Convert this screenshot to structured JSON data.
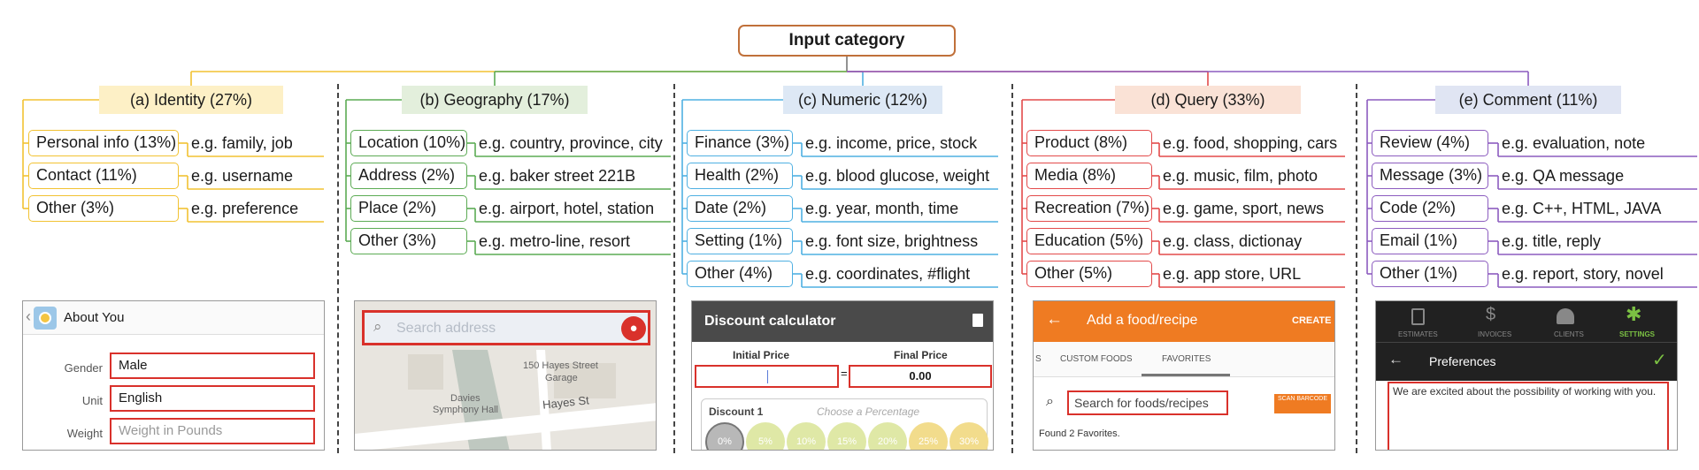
{
  "title": "Input category",
  "colors": {
    "identity": "#f2c232",
    "geography": "#5cab54",
    "numeric": "#4fb0e2",
    "query": "#e34a4a",
    "comment": "#8c5cbf",
    "identity_bg": "#fdf0c6",
    "geography_bg": "#e3efdc",
    "numeric_bg": "#dde8f5",
    "query_bg": "#fae2d6",
    "comment_bg": "#e0e5f3",
    "root_border": "#c0703a",
    "highlight_red": "#d9312b"
  },
  "categories": [
    {
      "label": "(a) Identity (27%)",
      "items": [
        {
          "name": "Personal info (13%)",
          "example": "e.g. family, job"
        },
        {
          "name": "Contact (11%)",
          "example": "e.g. username"
        },
        {
          "name": "Other (3%)",
          "example": "e.g. preference"
        }
      ]
    },
    {
      "label": "(b) Geography (17%)",
      "items": [
        {
          "name": "Location (10%)",
          "example": "e.g. country, province, city"
        },
        {
          "name": "Address (2%)",
          "example": "e.g. baker street 221B"
        },
        {
          "name": "Place (2%)",
          "example": "e.g. airport, hotel, station"
        },
        {
          "name": "Other (3%)",
          "example": "e.g. metro-line, resort"
        }
      ]
    },
    {
      "label": "(c) Numeric (12%)",
      "items": [
        {
          "name": "Finance (3%)",
          "example": "e.g. income, price, stock"
        },
        {
          "name": "Health (2%)",
          "example": "e.g. blood glucose, weight"
        },
        {
          "name": "Date (2%)",
          "example": "e.g. year, month, time"
        },
        {
          "name": "Setting (1%)",
          "example": "e.g. font size, brightness"
        },
        {
          "name": "Other (4%)",
          "example": "e.g. coordinates, #flight"
        }
      ]
    },
    {
      "label": "(d) Query (33%)",
      "items": [
        {
          "name": "Product (8%)",
          "example": "e.g. food, shopping, cars"
        },
        {
          "name": "Media (8%)",
          "example": "e.g. music, film, photo"
        },
        {
          "name": "Recreation (7%)",
          "example": "e.g. game, sport, news"
        },
        {
          "name": "Education (5%)",
          "example": "e.g. class, dictionay"
        },
        {
          "name": "Other (5%)",
          "example": "e.g. app store, URL"
        }
      ]
    },
    {
      "label": "(e) Comment (11%)",
      "items": [
        {
          "name": "Review (4%)",
          "example": "e.g. evaluation, note"
        },
        {
          "name": "Message (3%)",
          "example": "e.g. QA message"
        },
        {
          "name": "Code (2%)",
          "example": "e.g. C++, HTML, JAVA"
        },
        {
          "name": "Email (1%)",
          "example": "e.g. title, reply"
        },
        {
          "name": "Other (1%)",
          "example": "e.g. report, story, novel"
        }
      ]
    }
  ],
  "screens": {
    "identity": {
      "title": "About You",
      "icon": "avatar-icon",
      "fields": [
        {
          "label": "Gender",
          "value": "Male",
          "is_placeholder": false
        },
        {
          "label": "Unit",
          "value": "English",
          "is_placeholder": false
        },
        {
          "label": "Weight",
          "value": "Weight in Pounds",
          "is_placeholder": true
        }
      ]
    },
    "geography": {
      "placeholder": "Search address",
      "map_labels": [
        "150 Hayes Street",
        "Garage",
        "Davies",
        "Symphony Hall",
        "Hayes St"
      ],
      "icons": [
        "search-icon",
        "mic-icon"
      ]
    },
    "numeric": {
      "title": "Discount calculator",
      "initial_label": "Initial Price",
      "final_label": "Final Price",
      "equals": "=",
      "final_value": "0.00",
      "discount_label": "Discount 1",
      "discount_hint": "Choose a Percentage",
      "chips": [
        "0%",
        "5%",
        "10%",
        "15%",
        "20%",
        "25%",
        "30%"
      ],
      "icons": [
        "trash-icon"
      ]
    },
    "query": {
      "title": "Add a food/recipe",
      "action": "CREATE",
      "tab_partial": "S",
      "tabs": [
        "CUSTOM FOODS",
        "FAVORITES"
      ],
      "search_placeholder": "Search for foods/recipes",
      "scan_button": "SCAN BARCODE",
      "status": "Found 2 Favorites.",
      "icons": [
        "back-arrow-icon",
        "search-icon"
      ]
    },
    "comment": {
      "nav": [
        "ESTIMATES",
        "INVOICES",
        "CLIENTS",
        "SETTINGS"
      ],
      "header": "Preferences",
      "text": "We are excited about the possibility of working with you.",
      "icons": [
        "document-icon",
        "dollar-icon",
        "people-icon",
        "gear-icon",
        "back-arrow-icon",
        "checkmark-icon"
      ]
    }
  }
}
